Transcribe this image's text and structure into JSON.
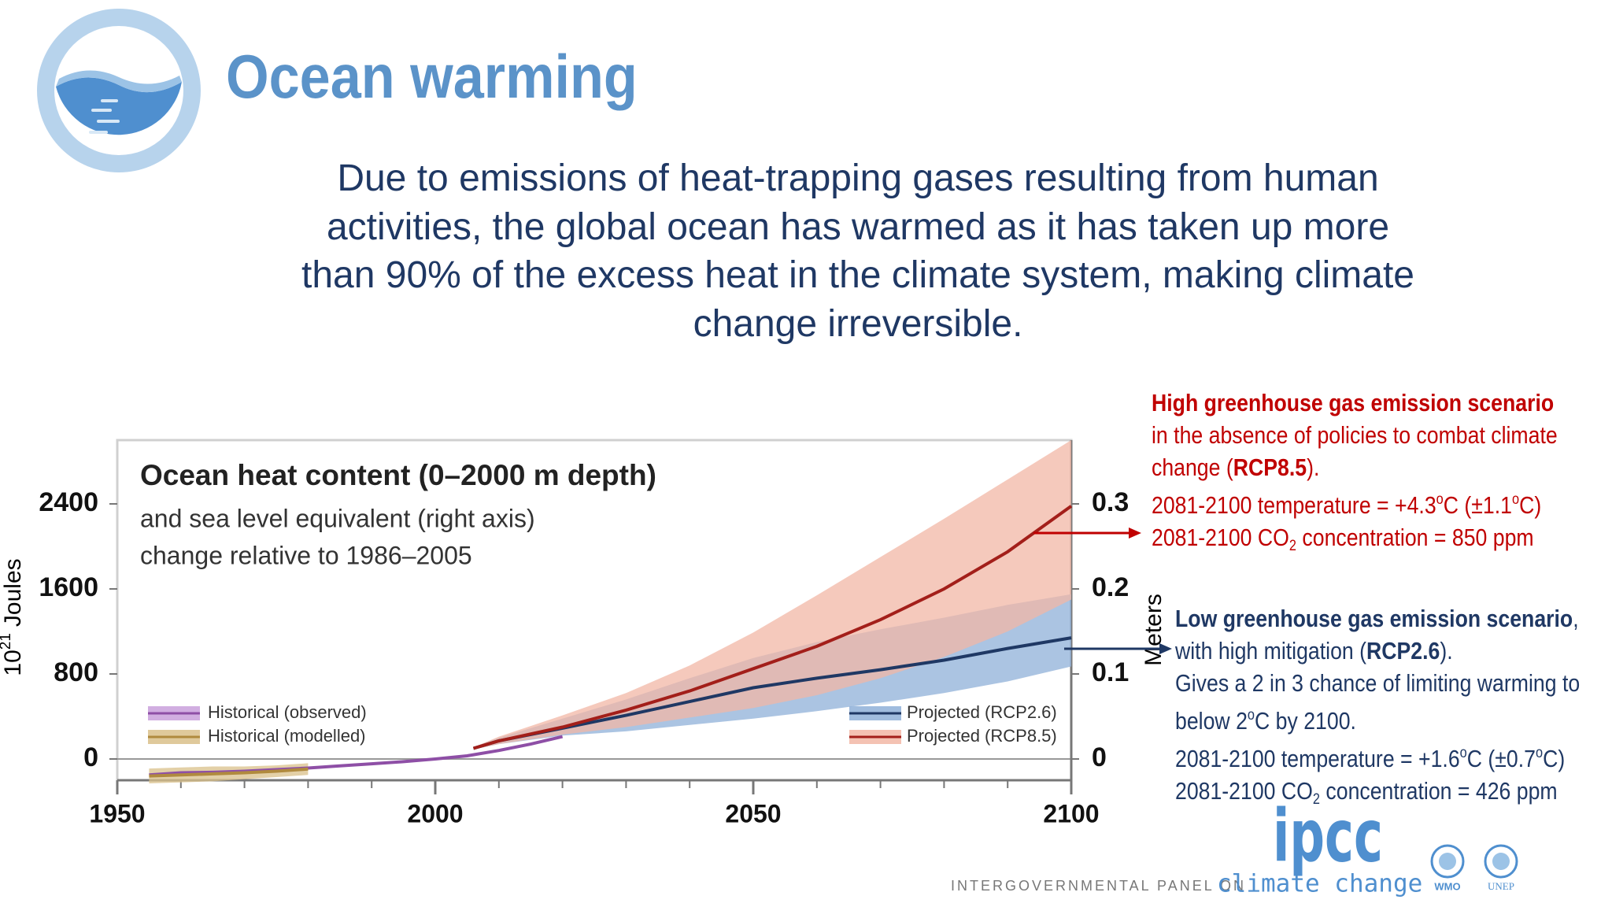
{
  "header": {
    "title": "Ocean warming"
  },
  "body": {
    "lines": [
      "Due to emissions of heat-trapping gases resulting from human",
      "activities, the global ocean has warmed as it has taken up more",
      "than 90% of the excess heat in the climate system, making climate",
      "change irreversible."
    ]
  },
  "chart_data": {
    "type": "line",
    "title": "Ocean heat content (0–2000 m depth)",
    "subtitle": [
      "and sea level equivalent (right axis)",
      "change relative to 1986–2005"
    ],
    "ylabel": {
      "base": "10",
      "exp": "21",
      "unit": "Joules"
    },
    "y2label": "Meters",
    "xlim": [
      1950,
      2100
    ],
    "xticks": [
      1950,
      2000,
      2050,
      2100
    ],
    "xminorticks": [
      1960,
      1970,
      1980,
      1990,
      2010,
      2020,
      2030,
      2040,
      2060,
      2070,
      2080,
      2090
    ],
    "ylim": [
      -200,
      3000
    ],
    "yticks": [
      0,
      800,
      1600,
      2400
    ],
    "y2lim": [
      -0.025,
      0.375
    ],
    "y2ticks": [
      0,
      0.1,
      0.2,
      0.3
    ],
    "series": [
      {
        "name": "Historical (observed)",
        "color": "#8e4fa6",
        "band_color": "#c9a0dc",
        "legend": "lower left",
        "x": [
          1955,
          1960,
          1965,
          1970,
          1975,
          1980,
          1985,
          1990,
          1995,
          2000,
          2005,
          2010,
          2015,
          2020
        ],
        "values": [
          -150,
          -130,
          -125,
          -115,
          -100,
          -85,
          -65,
          -45,
          -25,
          0,
          30,
          80,
          140,
          210
        ]
      },
      {
        "name": "Historical (modelled)",
        "color": "#b08a3e",
        "band_color": "#d9c08a",
        "legend": "lower left",
        "x": [
          1955,
          1960,
          1965,
          1970,
          1975,
          1980
        ],
        "values": [
          -160,
          -150,
          -140,
          -130,
          -115,
          -95
        ],
        "lower": [
          -230,
          -220,
          -210,
          -190,
          -170,
          -150
        ],
        "upper": [
          -90,
          -80,
          -70,
          -70,
          -60,
          -40
        ]
      },
      {
        "name": "Projected (RCP2.6)",
        "color": "#1f3864",
        "band_color": "#8fb0d8",
        "legend": "lower right",
        "x": [
          2006,
          2010,
          2020,
          2030,
          2040,
          2050,
          2060,
          2070,
          2080,
          2090,
          2100
        ],
        "values": [
          100,
          170,
          290,
          410,
          540,
          670,
          760,
          840,
          930,
          1040,
          1140
        ],
        "lower": [
          90,
          140,
          220,
          260,
          320,
          380,
          450,
          530,
          620,
          730,
          870
        ],
        "upper": [
          110,
          200,
          380,
          560,
          760,
          950,
          1100,
          1220,
          1330,
          1450,
          1550
        ]
      },
      {
        "name": "Projected (RCP8.5)",
        "color": "#a31f1a",
        "band_color": "#f2b7a6",
        "legend": "lower right",
        "x": [
          2006,
          2010,
          2020,
          2030,
          2040,
          2050,
          2060,
          2070,
          2080,
          2090,
          2100
        ],
        "values": [
          100,
          170,
          300,
          460,
          640,
          850,
          1060,
          1310,
          1600,
          1950,
          2380
        ],
        "lower": [
          90,
          140,
          230,
          300,
          390,
          480,
          600,
          760,
          960,
          1200,
          1500
        ],
        "upper": [
          110,
          210,
          410,
          620,
          880,
          1190,
          1540,
          1900,
          2260,
          2630,
          3000
        ]
      }
    ]
  },
  "annotations": {
    "high": {
      "heading": "High greenhouse gas emission scenario",
      "line1": "in the absence of policies to combat climate",
      "line2a": "change (",
      "line2b": "RCP8.5",
      "line2c": ").",
      "temp_a": "2081-2100 temperature = +4.3",
      "temp_b": "o",
      "temp_c": "C (±1.1",
      "temp_d": "o",
      "temp_e": "C)",
      "co2_a": "2081-2100 CO",
      "co2_b": "2",
      "co2_c": "concentration = 850 ppm"
    },
    "low": {
      "heading": "Low greenhouse gas emission scenario",
      "heading_after": ",",
      "line1a": "with high mitigation (",
      "line1b": "RCP2.6",
      "line1c": ").",
      "line2": "Gives a 2 in 3 chance of limiting warming to",
      "line3a": "below 2",
      "line3b": "o",
      "line3c": "C by 2100.",
      "temp_a": "2081-2100 temperature = +1.6",
      "temp_b": "o",
      "temp_c": "C (±0.7",
      "temp_d": "o",
      "temp_e": "C)",
      "co2_a": "2081-2100 CO",
      "co2_b": "2",
      "co2_c": "concentration = 426 ppm"
    }
  },
  "footer": {
    "ipcc": "ipcc",
    "org_a": "INTERGOVERNMENTAL PANEL ON",
    "org_b": "climate change",
    "wmo": "WMO",
    "unep": "UNEP"
  }
}
